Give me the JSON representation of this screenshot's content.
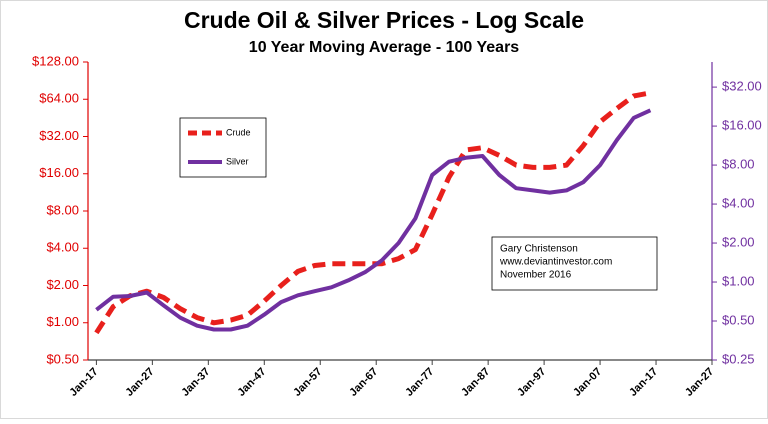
{
  "chart_data": {
    "type": "line",
    "title": "Crude Oil & Silver Prices - Log Scale",
    "subtitle": "10 Year Moving Average - 100 Years",
    "log_scale": true,
    "grid": false,
    "legend": "upper left",
    "annotation": [
      "Gary Christenson",
      "www.deviantinvestor.com",
      "November 2016"
    ],
    "x": [
      1917,
      1920,
      1923,
      1926,
      1929,
      1932,
      1935,
      1938,
      1941,
      1944,
      1947,
      1950,
      1953,
      1956,
      1959,
      1962,
      1965,
      1968,
      1971,
      1974,
      1977,
      1980,
      1983,
      1986,
      1989,
      1992,
      1995,
      1998,
      2001,
      2004,
      2007,
      2010,
      2013,
      2016
    ],
    "xlim": [
      1915.5,
      2027
    ],
    "xticks": [
      {
        "value": 1917,
        "label": "Jan-17"
      },
      {
        "value": 1927,
        "label": "Jan-27"
      },
      {
        "value": 1937,
        "label": "Jan-37"
      },
      {
        "value": 1947,
        "label": "Jan-47"
      },
      {
        "value": 1957,
        "label": "Jan-57"
      },
      {
        "value": 1967,
        "label": "Jan-67"
      },
      {
        "value": 1977,
        "label": "Jan-77"
      },
      {
        "value": 1987,
        "label": "Jan-87"
      },
      {
        "value": 1997,
        "label": "Jan-97"
      },
      {
        "value": 2007,
        "label": "Jan-07"
      },
      {
        "value": 2017,
        "label": "Jan-17"
      },
      {
        "value": 2027,
        "label": "Jan-27"
      }
    ],
    "ylim": [
      0.5,
      128
    ],
    "yticks": [
      {
        "value": 0.5,
        "label": "$0.50"
      },
      {
        "value": 1,
        "label": "$1.00"
      },
      {
        "value": 2,
        "label": "$2.00"
      },
      {
        "value": 4,
        "label": "$4.00"
      },
      {
        "value": 8,
        "label": "$8.00"
      },
      {
        "value": 16,
        "label": "$16.00"
      },
      {
        "value": 32,
        "label": "$32.00"
      },
      {
        "value": 64,
        "label": "$64.00"
      },
      {
        "value": 128,
        "label": "$128.00"
      }
    ],
    "y2lim": [
      0.25,
      50
    ],
    "y2ticks": [
      {
        "value": 0.25,
        "label": "$0.25"
      },
      {
        "value": 0.5,
        "label": "$0.50"
      },
      {
        "value": 1,
        "label": "$1.00"
      },
      {
        "value": 2,
        "label": "$2.00"
      },
      {
        "value": 4,
        "label": "$4.00"
      },
      {
        "value": 8,
        "label": "$8.00"
      },
      {
        "value": 16,
        "label": "$16.00"
      },
      {
        "value": 32,
        "label": "$32.00"
      }
    ],
    "series": [
      {
        "name": "Crude",
        "color": "#e8201c",
        "line_style": "dashed",
        "values": [
          0.83,
          1.35,
          1.65,
          1.8,
          1.6,
          1.3,
          1.1,
          1.0,
          1.05,
          1.15,
          1.5,
          2.0,
          2.6,
          2.9,
          3.0,
          3.0,
          3.0,
          3.0,
          3.3,
          3.9,
          7.5,
          15,
          24.9,
          26,
          22.5,
          18.8,
          18,
          18,
          18.8,
          27,
          42,
          54,
          68,
          72
        ]
      },
      {
        "name": "Silver",
        "color": "#7030a0",
        "line_style": "solid",
        "axis": "y2",
        "values": [
          0.61,
          0.77,
          0.78,
          0.83,
          0.66,
          0.53,
          0.46,
          0.43,
          0.43,
          0.46,
          0.56,
          0.7,
          0.79,
          0.85,
          0.91,
          1.03,
          1.19,
          1.47,
          2.0,
          3.1,
          6.7,
          8.5,
          9.1,
          9.4,
          6.7,
          5.3,
          5.1,
          4.9,
          5.1,
          5.9,
          8.0,
          12.5,
          18.5,
          21.2
        ]
      }
    ]
  }
}
